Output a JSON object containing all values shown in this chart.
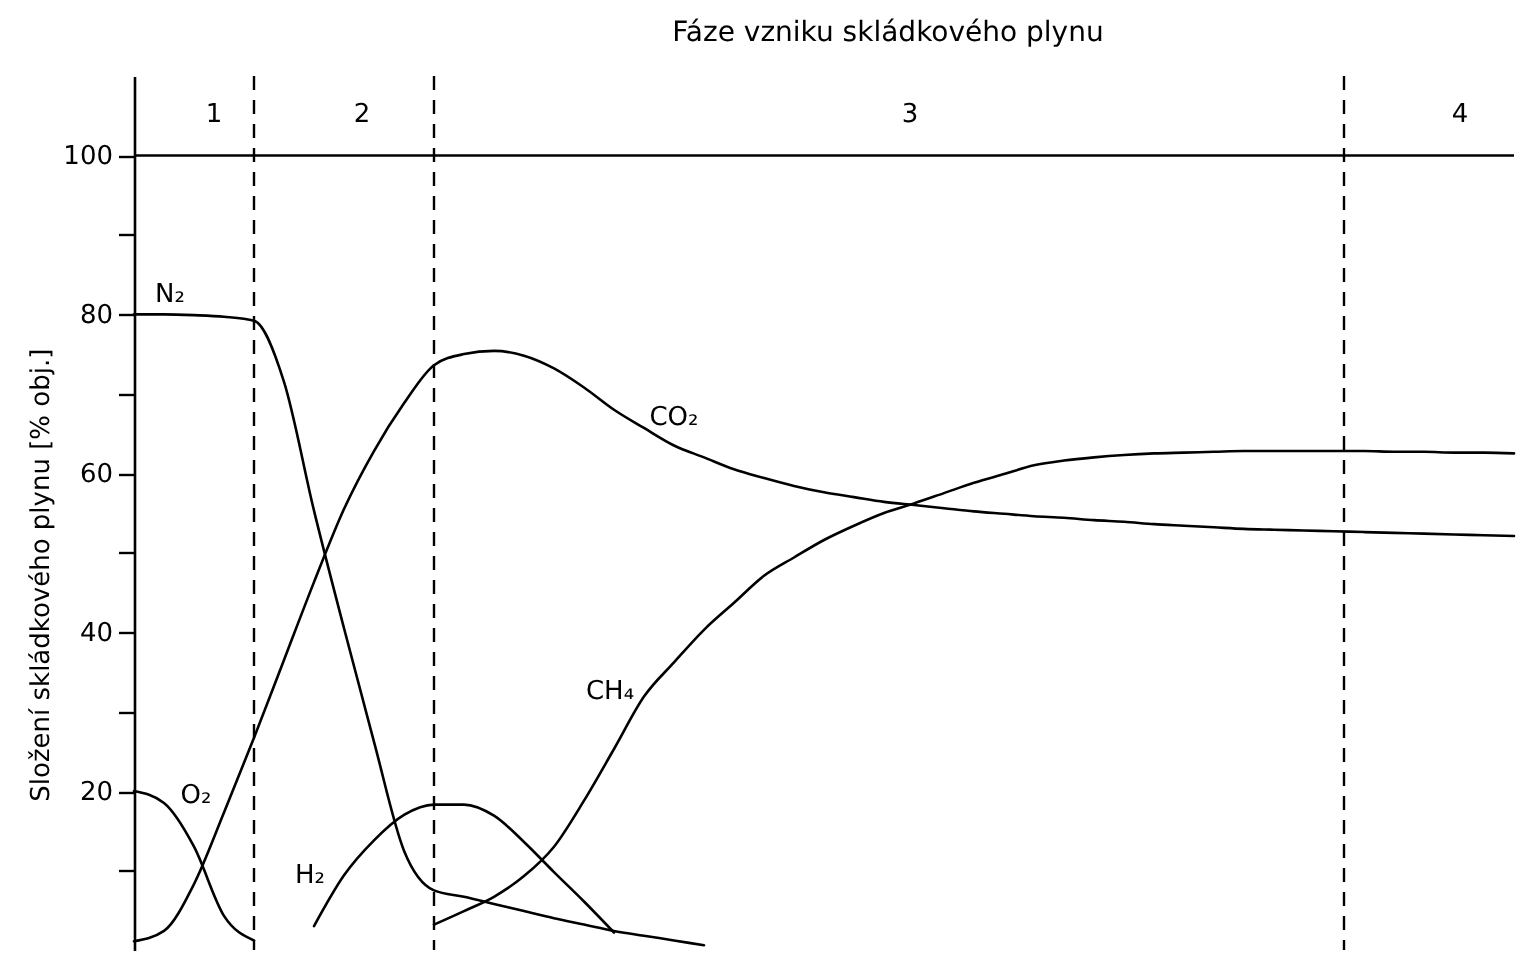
{
  "chart_data": {
    "type": "line",
    "title": "Fáze vzniku skládkového plynu",
    "ylabel": "Složení skládkového plynu [% obj.]",
    "categories": [
      null,
      null,
      null,
      null,
      null,
      null,
      null,
      null,
      null,
      null,
      null,
      null,
      null,
      null,
      null,
      null,
      null,
      null,
      null,
      null,
      null,
      null,
      null,
      null,
      null,
      null,
      null,
      null,
      null,
      null,
      null,
      null,
      null,
      null,
      null,
      null,
      null,
      null,
      null,
      null,
      null,
      null,
      null,
      null,
      null,
      null,
      null
    ],
    "series": [
      {
        "name": "N₂",
        "color": "#000000",
        "values": [
          80,
          80,
          79.9,
          79.7,
          79.2,
          71.5,
          55.3,
          40.5,
          26.2,
          12.5,
          7.5,
          6.7,
          5.8,
          4.9,
          4.0,
          3.2,
          2.4,
          1.8,
          1.2,
          0.6,
          null,
          null,
          null,
          null,
          null,
          null,
          null,
          null,
          null,
          null,
          null,
          null,
          null,
          null,
          null,
          null,
          null,
          null,
          null,
          null,
          null,
          null,
          null,
          null,
          null,
          null,
          null
        ]
      },
      {
        "name": "O₂",
        "color": "#000000",
        "values": [
          20,
          18.5,
          13,
          4.3,
          1.2,
          null,
          null,
          null,
          null,
          null,
          null,
          null,
          null,
          null,
          null,
          null,
          null,
          null,
          null,
          null,
          null,
          null,
          null,
          null,
          null,
          null,
          null,
          null,
          null,
          null,
          null,
          null,
          null,
          null,
          null,
          null,
          null,
          null,
          null,
          null,
          null,
          null,
          null,
          null,
          null,
          null,
          null
        ]
      },
      {
        "name": "CO₂",
        "color": "#000000",
        "values": [
          1.1,
          2.4,
          8.3,
          17.3,
          26.7,
          36.5,
          46.3,
          55.5,
          62.8,
          68.8,
          73.6,
          75.0,
          75.4,
          74.8,
          73.2,
          70.8,
          68.0,
          65.7,
          63.5,
          62.0,
          60.5,
          59.4,
          58.4,
          57.6,
          57.0,
          56.4,
          56.0,
          55.6,
          55.2,
          54.9,
          54.6,
          54.4,
          54.1,
          53.9,
          53.6,
          53.4,
          53.2,
          53.0,
          52.9,
          52.8,
          52.7,
          52.6,
          52.5,
          52.4,
          52.3,
          52.2,
          52.1
        ]
      },
      {
        "name": "H₂",
        "color": "#000000",
        "values": [
          null,
          null,
          null,
          null,
          null,
          null,
          3.0,
          9.4,
          13.8,
          17.0,
          18.3,
          18.3,
          16.9,
          13.6,
          9.8,
          6.1,
          2.2,
          null,
          null,
          null,
          null,
          null,
          null,
          null,
          null,
          null,
          null,
          null,
          null,
          null,
          null,
          null,
          null,
          null,
          null,
          null,
          null,
          null,
          null,
          null,
          null,
          null,
          null,
          null,
          null,
          null,
          null
        ]
      },
      {
        "name": "CH₄",
        "color": "#000000",
        "values": [
          null,
          null,
          null,
          null,
          null,
          null,
          null,
          null,
          null,
          null,
          3.2,
          4.9,
          6.7,
          9.3,
          13.0,
          18.8,
          25.3,
          31.9,
          36.2,
          40.3,
          43.7,
          47.1,
          49.4,
          51.6,
          53.4,
          55.0,
          56.2,
          57.5,
          58.8,
          59.9,
          61.0,
          61.6,
          62.0,
          62.3,
          62.5,
          62.6,
          62.7,
          62.8,
          62.8,
          62.8,
          62.8,
          62.8,
          62.7,
          62.7,
          62.6,
          62.6,
          62.5
        ]
      }
    ],
    "ylim": [
      0,
      110
    ],
    "yticks": [
      {
        "value": 10,
        "label": null
      },
      20,
      {
        "value": 30,
        "label": null
      },
      40,
      {
        "value": 50,
        "label": null
      },
      60,
      {
        "value": 70,
        "label": null
      },
      80,
      {
        "value": 90,
        "label": null
      },
      100
    ],
    "ref_lines": [
      {
        "axis": "y",
        "value": 100
      }
    ],
    "annotations": [
      "1",
      "2",
      "3",
      "4"
    ],
    "tick_labels": "y"
  }
}
